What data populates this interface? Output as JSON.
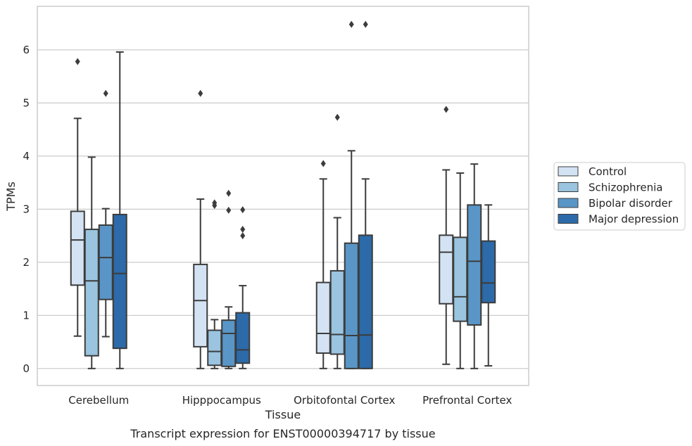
{
  "chart_data": {
    "type": "box",
    "xlabel": "Tissue",
    "ylabel": "TPMs",
    "caption": "Transcript expression for ENST00000394717 by tissue",
    "ylim": [
      -0.32,
      6.82
    ],
    "yticks": [
      0,
      1,
      2,
      3,
      4,
      5,
      6
    ],
    "grid": "horizontal",
    "legend_position": "right",
    "categories": [
      "Cerebellum",
      "Hipppocampus",
      "Orbitofontal Cortex",
      "Prefrontal Cortex"
    ],
    "series": [
      {
        "name": "Control",
        "color": "#d4e3f3"
      },
      {
        "name": "Schizophrenia",
        "color": "#9ac4df"
      },
      {
        "name": "Bipolar disorder",
        "color": "#5996c7"
      },
      {
        "name": "Major depression",
        "color": "#2c6aa9"
      }
    ],
    "boxes": [
      [
        {
          "whisker_low": 0.61,
          "q1": 1.57,
          "median": 2.42,
          "q3": 2.96,
          "whisker_high": 4.71,
          "outliers": [
            5.78
          ]
        },
        {
          "whisker_low": 0.0,
          "q1": 0.24,
          "median": 1.65,
          "q3": 2.62,
          "whisker_high": 3.98,
          "outliers": []
        },
        {
          "whisker_low": 0.6,
          "q1": 1.3,
          "median": 2.09,
          "q3": 2.7,
          "whisker_high": 3.01,
          "outliers": [
            5.18
          ]
        },
        {
          "whisker_low": 0.0,
          "q1": 0.38,
          "median": 1.79,
          "q3": 2.9,
          "whisker_high": 5.96,
          "outliers": []
        }
      ],
      [
        {
          "whisker_low": 0.0,
          "q1": 0.41,
          "median": 1.28,
          "q3": 1.96,
          "whisker_high": 3.19,
          "outliers": [
            5.18
          ]
        },
        {
          "whisker_low": 0.0,
          "q1": 0.06,
          "median": 0.32,
          "q3": 0.72,
          "whisker_high": 0.92,
          "outliers": [
            3.07,
            3.12
          ]
        },
        {
          "whisker_low": 0.0,
          "q1": 0.04,
          "median": 0.66,
          "q3": 0.91,
          "whisker_high": 1.16,
          "outliers": [
            2.98,
            3.3
          ]
        },
        {
          "whisker_low": 0.0,
          "q1": 0.1,
          "median": 0.35,
          "q3": 1.05,
          "whisker_high": 1.56,
          "outliers": [
            2.5,
            2.62,
            2.99
          ]
        }
      ],
      [
        {
          "whisker_low": 0.0,
          "q1": 0.29,
          "median": 0.66,
          "q3": 1.62,
          "whisker_high": 3.57,
          "outliers": [
            3.86
          ]
        },
        {
          "whisker_low": 0.0,
          "q1": 0.27,
          "median": 0.64,
          "q3": 1.84,
          "whisker_high": 2.84,
          "outliers": [
            4.73
          ]
        },
        {
          "whisker_low": 0.0,
          "q1": 0.0,
          "median": 0.62,
          "q3": 2.36,
          "whisker_high": 4.1,
          "outliers": [
            6.48
          ]
        },
        {
          "whisker_low": 0.0,
          "q1": 0.0,
          "median": 0.63,
          "q3": 2.51,
          "whisker_high": 3.57,
          "outliers": [
            6.48
          ]
        }
      ],
      [
        {
          "whisker_low": 0.08,
          "q1": 1.22,
          "median": 2.19,
          "q3": 2.51,
          "whisker_high": 3.74,
          "outliers": [
            4.88
          ]
        },
        {
          "whisker_low": 0.0,
          "q1": 0.89,
          "median": 1.35,
          "q3": 2.47,
          "whisker_high": 3.68,
          "outliers": []
        },
        {
          "whisker_low": 0.0,
          "q1": 0.82,
          "median": 2.02,
          "q3": 3.08,
          "whisker_high": 3.85,
          "outliers": []
        },
        {
          "whisker_low": 0.05,
          "q1": 1.24,
          "median": 1.61,
          "q3": 2.4,
          "whisker_high": 3.08,
          "outliers": []
        }
      ]
    ]
  }
}
